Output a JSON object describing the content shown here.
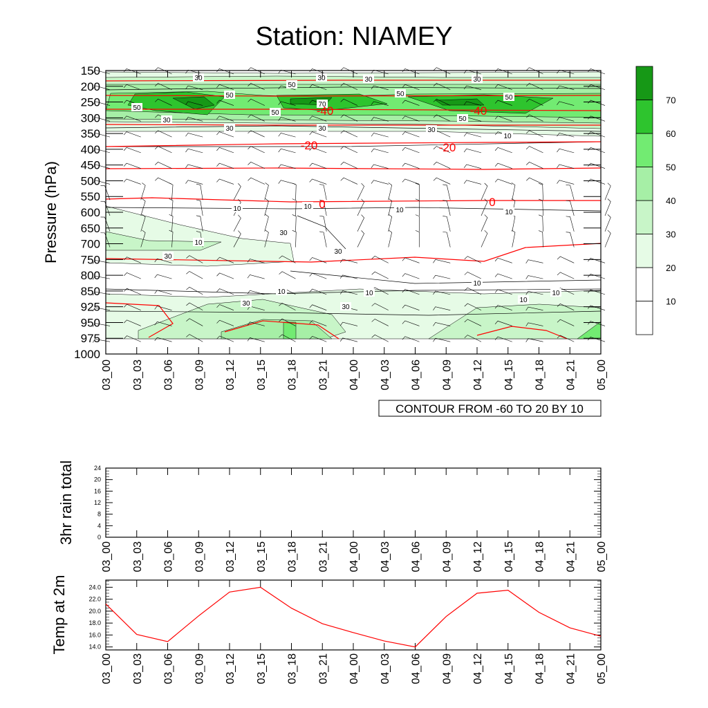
{
  "title": "Station: NIAMEY",
  "time_labels": [
    "03_00",
    "03_03",
    "03_06",
    "03_09",
    "03_12",
    "03_15",
    "03_18",
    "03_21",
    "04_00",
    "04_03",
    "04_06",
    "04_09",
    "04_12",
    "04_15",
    "04_18",
    "04_21",
    "05_00"
  ],
  "main": {
    "ylabel": "Pressure (hPa)",
    "pressure_levels": [
      150,
      200,
      250,
      300,
      350,
      400,
      450,
      500,
      550,
      600,
      650,
      700,
      750,
      800,
      850,
      925,
      950,
      975,
      1000
    ],
    "info_box": "CONTOUR FROM -60 TO 20 BY 10",
    "colorbar": {
      "labels": [
        "10",
        "20",
        "30",
        "40",
        "50",
        "60",
        "70"
      ],
      "colors": [
        "#ffffff",
        "#ffffff",
        "#e6fbe6",
        "#c8f5c8",
        "#a6efa6",
        "#72eb72",
        "#2ec42e",
        "#169816"
      ]
    },
    "temp_contour_labels": [
      "-40",
      "-40",
      "-20",
      "-20",
      "0",
      "0"
    ],
    "wind_contour_labels": [
      "30",
      "30",
      "30",
      "30",
      "50",
      "50",
      "50",
      "50",
      "70",
      "50",
      "50",
      "50",
      "30",
      "30",
      "30",
      "30",
      "10",
      "10",
      "10",
      "10",
      "10",
      "30",
      "30",
      "10",
      "10",
      "10",
      "10",
      "30",
      "30",
      "30",
      "10",
      "10"
    ]
  },
  "chart_data": [
    {
      "type": "heatmap",
      "title": "Station: NIAMEY",
      "xlabel": "",
      "ylabel": "Pressure (hPa)",
      "x": [
        "03_00",
        "03_03",
        "03_06",
        "03_09",
        "03_12",
        "03_15",
        "03_18",
        "03_21",
        "04_00",
        "04_03",
        "04_06",
        "04_09",
        "04_12",
        "04_15",
        "04_18",
        "04_21",
        "05_00"
      ],
      "y_levels": [
        150,
        200,
        250,
        300,
        350,
        400,
        450,
        500,
        550,
        600,
        650,
        700,
        750,
        800,
        850,
        925,
        950,
        975,
        1000
      ],
      "contour_range": [
        -60,
        20,
        10
      ],
      "temperature_contours": [
        {
          "level": -40,
          "approx_pressure": 275
        },
        {
          "level": -20,
          "approx_pressure": 385
        },
        {
          "level": 0,
          "approx_pressure": 560
        }
      ],
      "wind_speed_shading_levels": [
        10,
        20,
        30,
        40,
        50,
        60,
        70
      ]
    },
    {
      "type": "line",
      "ylabel": "3hr rain total",
      "x": [
        "03_00",
        "03_03",
        "03_06",
        "03_09",
        "03_12",
        "03_15",
        "03_18",
        "03_21",
        "04_00",
        "04_03",
        "04_06",
        "04_09",
        "04_12",
        "04_15",
        "04_18",
        "04_21",
        "05_00"
      ],
      "values": [
        0,
        0,
        0,
        0,
        0,
        0,
        0,
        0,
        0,
        0,
        0,
        0,
        0,
        0,
        0,
        0,
        0
      ],
      "ylim": [
        0,
        24
      ],
      "yticks": [
        "0",
        "4",
        "8",
        "12",
        "16",
        "20",
        "24"
      ]
    },
    {
      "type": "line",
      "ylabel": "Temp at 2m",
      "x": [
        "03_00",
        "03_03",
        "03_06",
        "03_09",
        "03_12",
        "03_15",
        "03_18",
        "03_21",
        "04_00",
        "04_03",
        "04_06",
        "04_09",
        "04_12",
        "04_15",
        "04_18",
        "04_21",
        "05_00"
      ],
      "values": [
        21.2,
        16.1,
        14.9,
        19.2,
        23.2,
        24.0,
        20.5,
        17.9,
        16.4,
        15.0,
        14.0,
        19.1,
        23.0,
        23.5,
        19.8,
        17.2,
        15.8
      ],
      "ylim": [
        13.5,
        25.2
      ],
      "yticks": [
        "14.0",
        "16.0",
        "18.0",
        "20.0",
        "22.0",
        "24.0"
      ],
      "line_color": "#ff0000"
    }
  ]
}
